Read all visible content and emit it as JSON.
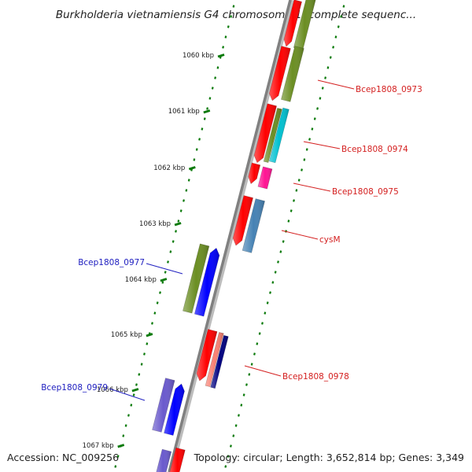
{
  "title": "Burkholderia vietnamiensis G4 chromosome 1, complete sequenc...",
  "footer": {
    "accession": "Accession: NC_009256",
    "topology": "Topology: circular; Length: 3,652,814 bp; Genes: 3,349"
  },
  "ruler": {
    "ticks": [
      {
        "label": "1060 kbp"
      },
      {
        "label": "1061 kbp"
      },
      {
        "label": "1062 kbp"
      },
      {
        "label": "1063 kbp"
      },
      {
        "label": "1064 kbp"
      },
      {
        "label": "1065 kbp"
      },
      {
        "label": "1066 kbp"
      },
      {
        "label": "1067 kbp"
      }
    ]
  },
  "gene_labels": [
    {
      "name": "Bcep1808_0973",
      "strand": "forward",
      "color": "#d42020"
    },
    {
      "name": "Bcep1808_0974",
      "strand": "forward",
      "color": "#d42020"
    },
    {
      "name": "Bcep1808_0975",
      "strand": "forward",
      "color": "#d42020"
    },
    {
      "name": "cysM",
      "strand": "forward",
      "color": "#d42020"
    },
    {
      "name": "Bcep1808_0977",
      "strand": "reverse",
      "color": "#2020c0"
    },
    {
      "name": "Bcep1808_0978",
      "strand": "forward",
      "color": "#d42020"
    },
    {
      "name": "Bcep1808_0979",
      "strand": "reverse",
      "color": "#2020c0"
    }
  ],
  "colors": {
    "forward_cds": "#ff0000",
    "reverse_cds": "#0000ff",
    "olive": "#6b8e23",
    "cyan": "#00c0d0",
    "magenta": "#ff1493",
    "steelblue": "#4682b4",
    "salmon": "#fa8072",
    "navy": "#000080",
    "slateblue": "#6a5acd",
    "backbone": "#808080",
    "tick": "#0a7a0a"
  }
}
